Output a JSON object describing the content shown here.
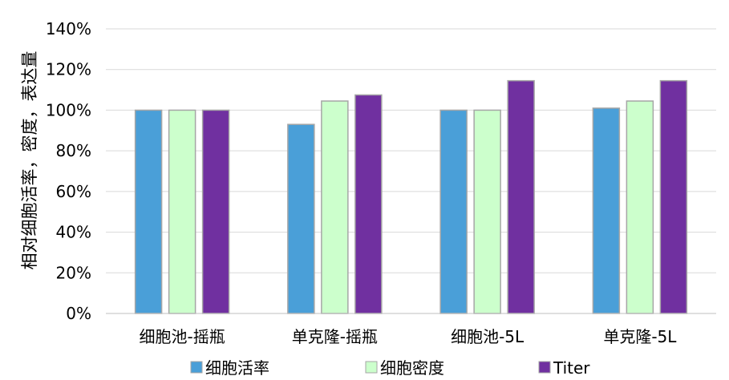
{
  "chart_data": {
    "type": "bar",
    "title": "",
    "xlabel": "",
    "ylabel": "相对细胞活率，密度，表达量",
    "categories": [
      "细胞池-摇瓶",
      "单克隆-摇瓶",
      "细胞池-5L",
      "单克隆-5L"
    ],
    "series": [
      {
        "name": "细胞活率",
        "color": "#4a9fd8",
        "values": [
          1.0,
          0.93,
          1.0,
          1.01
        ]
      },
      {
        "name": "细胞密度",
        "color": "#ccffcc",
        "values": [
          1.0,
          1.045,
          1.0,
          1.045
        ]
      },
      {
        "name": "Titer",
        "color": "#7030a0",
        "values": [
          1.0,
          1.075,
          1.145,
          1.145
        ]
      }
    ],
    "ylim": [
      0,
      1.4
    ],
    "yticks": [
      0,
      0.2,
      0.4,
      0.6,
      0.8,
      1.0,
      1.2,
      1.4
    ],
    "ytick_labels": [
      "0%",
      "20%",
      "40%",
      "60%",
      "80%",
      "100%",
      "120%",
      "140%"
    ],
    "grid": true,
    "legend_position": "bottom"
  }
}
